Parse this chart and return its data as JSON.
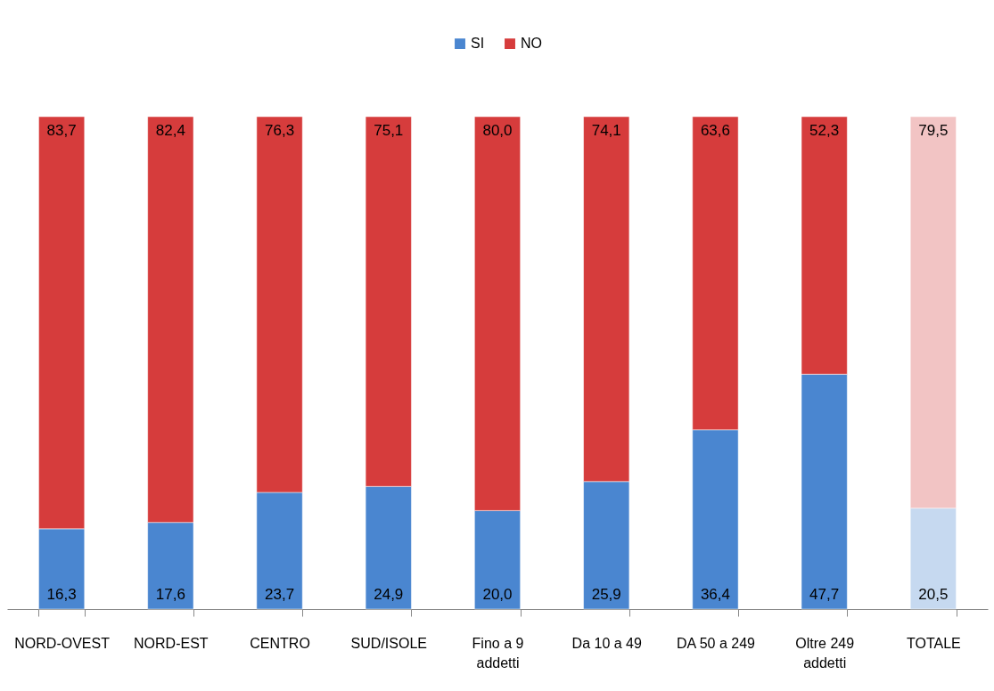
{
  "chart_data": {
    "type": "bar",
    "stacked": true,
    "legend": "top",
    "grid": false,
    "categories": [
      "NORD-OVEST",
      "NORD-EST",
      "CENTRO",
      "SUD/ISOLE",
      "Fino a 9 addetti",
      "Da 10 a 49",
      "DA 50 a 249",
      "Oltre 249 addetti",
      "TOTALE"
    ],
    "series": [
      {
        "name": "SI",
        "color": "#4a86d0",
        "colors": [
          "#4a86d0",
          "#4a86d0",
          "#4a86d0",
          "#4a86d0",
          "#4a86d0",
          "#4a86d0",
          "#4a86d0",
          "#4a86d0",
          "#c6d9f0"
        ],
        "values": [
          16.3,
          17.6,
          23.7,
          24.9,
          20.0,
          25.9,
          36.4,
          47.7,
          20.5
        ],
        "value_labels": [
          "16,3",
          "17,6",
          "23,7",
          "24,9",
          "20,0",
          "25,9",
          "36,4",
          "47,7",
          "20,5"
        ]
      },
      {
        "name": "NO",
        "color": "#d63c3c",
        "colors": [
          "#d63c3c",
          "#d63c3c",
          "#d63c3c",
          "#d63c3c",
          "#d63c3c",
          "#d63c3c",
          "#d63c3c",
          "#d63c3c",
          "#f2c4c4"
        ],
        "values": [
          83.7,
          82.4,
          76.3,
          75.1,
          80.0,
          74.1,
          63.6,
          52.3,
          79.5
        ],
        "value_labels": [
          "83,7",
          "82,4",
          "76,3",
          "75,1",
          "80,0",
          "74,1",
          "63,6",
          "52,3",
          "79,5"
        ]
      }
    ]
  }
}
